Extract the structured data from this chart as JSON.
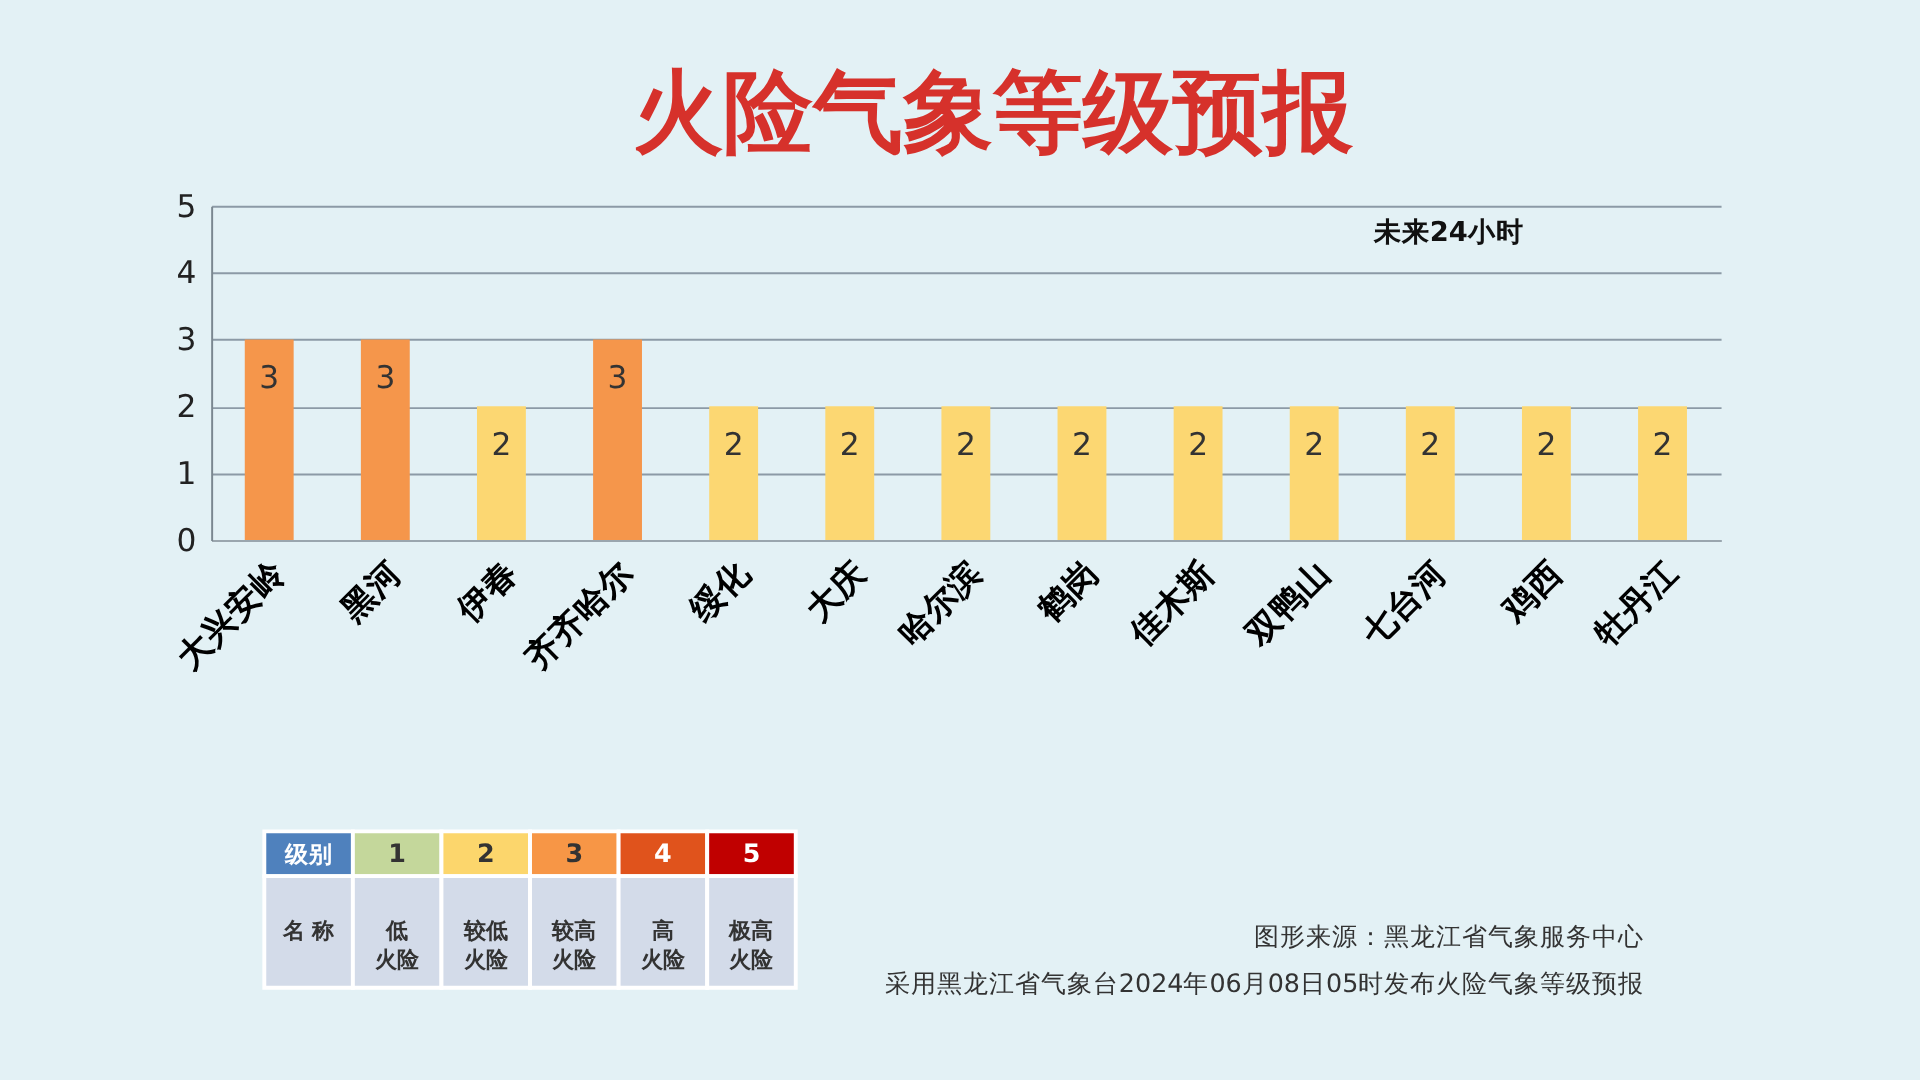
{
  "chart_data": [
    {
      "type": "bar",
      "title": "火险气象等级预报",
      "categories": [
        "大兴安岭",
        "黑河",
        "伊春",
        "齐齐哈尔",
        "绥化",
        "大庆",
        "哈尔滨",
        "鹤岗",
        "佳木斯",
        "双鸭山",
        "七台河",
        "鸡西",
        "牡丹江"
      ],
      "values": [
        3,
        3,
        2,
        3,
        2,
        2,
        2,
        2,
        2,
        2,
        2,
        2,
        2
      ],
      "colors": [
        "#f5964b",
        "#f5964b",
        "#fcd772",
        "#f5964b",
        "#fcd772",
        "#fcd772",
        "#fcd772",
        "#fcd772",
        "#fcd772",
        "#fcd772",
        "#fcd772",
        "#fcd772",
        "#fcd772"
      ],
      "ylim": [
        0,
        5
      ],
      "yticks": [
        0,
        1,
        2,
        3,
        4,
        5
      ],
      "grid": "y",
      "data_labels": true,
      "annotations": [
        "未来24小时",
        "图形来源：黑龙江省气象服务中心",
        "采用黑龙江省气象台2024年06月08日05时发布火险气象等级预报"
      ]
    },
    {
      "type": "heatmap",
      "y_categories": [
        "级别"
      ],
      "categories": [
        "低火险",
        "较低火险",
        "较高火险",
        "高火险",
        "极高火险"
      ],
      "xlabel": "名 称",
      "cells": [
        [
          1,
          2,
          3,
          4,
          5
        ]
      ],
      "colors": [
        "#c4d79b",
        "#fcd66c",
        "#f79646",
        "#e0531c",
        "#c00000"
      ],
      "data_labels": true
    }
  ]
}
